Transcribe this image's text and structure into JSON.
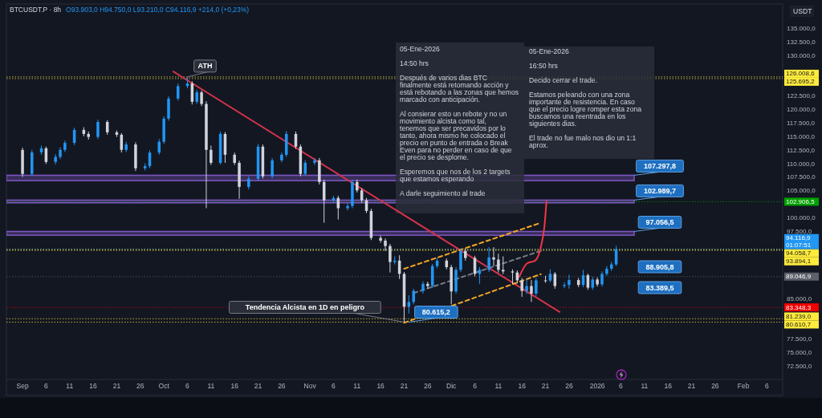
{
  "chart_data": {
    "type": "candlestick",
    "title": "BTCUSDT.P · 8h",
    "subtitle": "O93.903,0 H94.750,0 L93.210,0 C94.116,9 +214,0 (+0,23%)",
    "xlim": [
      "2025-08-28T14:00",
      "2026-02-09T08:00"
    ],
    "xticks": [
      {
        "value": "2025-09-01",
        "label": "Sep"
      },
      {
        "value": "2025-09-06",
        "label": "6"
      },
      {
        "value": "2025-09-11",
        "label": "11"
      },
      {
        "value": "2025-09-16",
        "label": "16"
      },
      {
        "value": "2025-09-21",
        "label": "21"
      },
      {
        "value": "2025-09-26",
        "label": "26"
      },
      {
        "value": "2025-10-01",
        "label": "Oct"
      },
      {
        "value": "2025-10-06",
        "label": "6"
      },
      {
        "value": "2025-10-11",
        "label": "11"
      },
      {
        "value": "2025-10-16",
        "label": "16"
      },
      {
        "value": "2025-10-21",
        "label": "21"
      },
      {
        "value": "2025-10-26",
        "label": "26"
      },
      {
        "value": "2025-11-01",
        "label": "Nov"
      },
      {
        "value": "2025-11-06",
        "label": "6"
      },
      {
        "value": "2025-11-11",
        "label": "11"
      },
      {
        "value": "2025-11-16",
        "label": "16"
      },
      {
        "value": "2025-11-21",
        "label": "21"
      },
      {
        "value": "2025-11-26",
        "label": "26"
      },
      {
        "value": "2025-12-01",
        "label": "Dic"
      },
      {
        "value": "2025-12-06",
        "label": "6"
      },
      {
        "value": "2025-12-11",
        "label": "11"
      },
      {
        "value": "2025-12-16",
        "label": "16"
      },
      {
        "value": "2025-12-21",
        "label": "21"
      },
      {
        "value": "2025-12-26",
        "label": "26"
      },
      {
        "value": "2026-01-01",
        "label": "2026"
      },
      {
        "value": "2026-01-06",
        "label": "6"
      },
      {
        "value": "2026-01-11",
        "label": "11"
      },
      {
        "value": "2026-01-16",
        "label": "16"
      },
      {
        "value": "2026-01-21",
        "label": "21"
      },
      {
        "value": "2026-01-26",
        "label": "26"
      },
      {
        "value": "2026-02-01",
        "label": "Feb"
      },
      {
        "value": "2026-02-06",
        "label": "6"
      }
    ],
    "ylim": [
      70000,
      139500
    ],
    "yticks": [
      {
        "value": 135000,
        "label": "135.000,0"
      },
      {
        "value": 132500,
        "label": "132.500,0"
      },
      {
        "value": 130000,
        "label": "130.000,0"
      },
      {
        "value": 122500,
        "label": "122.500,0"
      },
      {
        "value": 120000,
        "label": "120.000,0"
      },
      {
        "value": 117500,
        "label": "117.500,0"
      },
      {
        "value": 115000,
        "label": "115.000,0"
      },
      {
        "value": 112500,
        "label": "112.500,0"
      },
      {
        "value": 110000,
        "label": "110.000,0"
      },
      {
        "value": 107500,
        "label": "107.500,0"
      },
      {
        "value": 105000,
        "label": "105.000,0"
      },
      {
        "value": 100000,
        "label": "100.000,0"
      },
      {
        "value": 97500,
        "label": "97.500,0"
      },
      {
        "value": 85000,
        "label": "85.000,0"
      },
      {
        "value": 77500,
        "label": "77.500,0"
      },
      {
        "value": 75000,
        "label": "75.000,0"
      },
      {
        "value": 72500,
        "label": "72.500,0"
      }
    ],
    "series": [
      {
        "color": "#2196f3",
        "x": [
          "2025-09-03",
          "2025-09-05",
          "2025-09-08",
          "2025-09-09",
          "2025-09-10",
          "2025-09-12",
          "2025-09-17",
          "2025-09-23",
          "2025-09-27",
          "2025-09-28",
          "2025-09-30",
          "2025-10-01",
          "2025-10-02",
          "2025-10-04",
          "2025-10-06",
          "2025-10-08",
          "2025-10-13",
          "2025-10-19",
          "2025-10-21",
          "2025-10-24",
          "2025-10-26",
          "2025-10-27",
          "2025-10-31",
          "2025-11-02",
          "2025-11-06",
          "2025-11-09",
          "2025-11-10",
          "2025-11-19",
          "2025-11-22",
          "2025-11-23",
          "2025-11-25",
          "2025-11-27",
          "2025-11-28",
          "2025-12-02",
          "2025-12-03",
          "2025-12-07",
          "2025-12-09",
          "2025-12-17",
          "2025-12-19",
          "2025-12-22",
          "2025-12-25",
          "2025-12-26",
          "2025-12-29",
          "2025-12-31",
          "2026-01-02",
          "2026-01-03",
          "2026-01-04",
          "2026-01-05"
        ],
        "ohlc": [
          [
            108050,
            112500,
            107700,
            112040
          ],
          [
            112040,
            113300,
            111600,
            112800
          ],
          [
            110270,
            111700,
            109800,
            111200
          ],
          [
            111200,
            113000,
            110800,
            112500
          ],
          [
            112500,
            114200,
            112100,
            113800
          ],
          [
            113800,
            116600,
            113400,
            116200
          ],
          [
            114900,
            118100,
            114500,
            117670
          ],
          [
            112500,
            114000,
            112100,
            113500
          ],
          [
            109100,
            110000,
            108700,
            109500
          ],
          [
            109500,
            112400,
            109100,
            112000
          ],
          [
            112000,
            114500,
            111600,
            114000
          ],
          [
            114000,
            118700,
            113600,
            118300
          ],
          [
            118300,
            122400,
            117900,
            122000
          ],
          [
            122000,
            124800,
            121600,
            124300
          ],
          [
            124300,
            126008.6,
            123900,
            124800
          ],
          [
            121400,
            123600,
            121000,
            123150
          ],
          [
            110100,
            115900,
            109800,
            115450
          ],
          [
            105650,
            107600,
            105200,
            107150
          ],
          [
            107150,
            113600,
            106800,
            113100
          ],
          [
            107600,
            111000,
            107200,
            110560
          ],
          [
            110560,
            112000,
            110200,
            111600
          ],
          [
            111600,
            116000,
            111200,
            115450
          ],
          [
            108050,
            110600,
            107700,
            110100
          ],
          [
            110100,
            111000,
            109700,
            110560
          ],
          [
            103160,
            104000,
            102700,
            103600
          ],
          [
            101700,
            102600,
            101300,
            102120
          ],
          [
            102120,
            107000,
            101700,
            106560
          ],
          [
            91750,
            92800,
            91300,
            92000
          ],
          [
            83460,
            85600,
            82200,
            84350
          ],
          [
            84350,
            86800,
            83900,
            86400
          ],
          [
            86400,
            88200,
            85900,
            87700
          ],
          [
            87300,
            91400,
            86900,
            91000
          ],
          [
            91000,
            92500,
            90600,
            92000
          ],
          [
            86300,
            90800,
            85900,
            90300
          ],
          [
            90300,
            94300,
            89900,
            93800
          ],
          [
            89550,
            90800,
            87700,
            90300
          ],
          [
            90300,
            94500,
            89900,
            92600
          ],
          [
            86400,
            88600,
            85800,
            87300
          ],
          [
            85900,
            88800,
            85500,
            88350
          ],
          [
            88300,
            90400,
            88000,
            89550
          ],
          [
            87300,
            88000,
            86900,
            87500
          ],
          [
            87500,
            89400,
            86800,
            88400
          ],
          [
            87500,
            90300,
            87100,
            89300
          ],
          [
            87000,
            89000,
            86600,
            88500
          ],
          [
            87600,
            90000,
            87200,
            89550
          ],
          [
            89550,
            91000,
            89200,
            90500
          ],
          [
            90500,
            91800,
            90100,
            91300
          ],
          [
            91300,
            94750,
            91000,
            94116.9
          ]
        ]
      },
      {
        "color": "#d1d4dc",
        "x": [
          "2025-09-01",
          "2025-09-06",
          "2025-09-14",
          "2025-09-15",
          "2025-09-19",
          "2025-09-21",
          "2025-09-22",
          "2025-09-25",
          "2025-10-07",
          "2025-10-09",
          "2025-10-10",
          "2025-10-11",
          "2025-10-14",
          "2025-10-16",
          "2025-10-17",
          "2025-10-22",
          "2025-10-29",
          "2025-10-30",
          "2025-11-03",
          "2025-11-04",
          "2025-11-07",
          "2025-11-11",
          "2025-11-12",
          "2025-11-13",
          "2025-11-14",
          "2025-11-16",
          "2025-11-17",
          "2025-11-18",
          "2025-11-20",
          "2025-11-21",
          "2025-11-26",
          "2025-11-30",
          "2025-12-01",
          "2025-12-04",
          "2025-12-06",
          "2025-12-10",
          "2025-12-11",
          "2025-12-12",
          "2025-12-14",
          "2025-12-15",
          "2025-12-16",
          "2025-12-18",
          "2025-12-21",
          "2025-12-23",
          "2025-12-28",
          "2025-12-30",
          "2026-01-01"
        ],
        "ohlc": [
          [
            112490,
            112900,
            107500,
            108050
          ],
          [
            112800,
            113100,
            109900,
            110270
          ],
          [
            116200,
            116700,
            115000,
            115450
          ],
          [
            115450,
            115900,
            114400,
            114900
          ],
          [
            117670,
            118000,
            115300,
            115750
          ],
          [
            115750,
            116100,
            114900,
            115300
          ],
          [
            115300,
            115600,
            112000,
            112500
          ],
          [
            113500,
            113900,
            108600,
            109100
          ],
          [
            124800,
            125200,
            120900,
            121400
          ],
          [
            123150,
            123500,
            120600,
            121000
          ],
          [
            121000,
            121500,
            101700,
            112500
          ],
          [
            112500,
            113300,
            109700,
            110100
          ],
          [
            115450,
            115800,
            110100,
            111600
          ],
          [
            111600,
            112000,
            109700,
            110100
          ],
          [
            110100,
            110500,
            103450,
            105650
          ],
          [
            113100,
            113500,
            107200,
            107600
          ],
          [
            115450,
            115900,
            112700,
            113100
          ],
          [
            113100,
            113500,
            107600,
            108050
          ],
          [
            110560,
            111000,
            106100,
            106560
          ],
          [
            106560,
            107000,
            99010,
            103160
          ],
          [
            103600,
            104000,
            99600,
            101700
          ],
          [
            106560,
            107000,
            104600,
            105000
          ],
          [
            105000,
            105400,
            102700,
            103160
          ],
          [
            103160,
            103600,
            100800,
            101200
          ],
          [
            101200,
            101600,
            95800,
            96200
          ],
          [
            96200,
            96600,
            95300,
            95700
          ],
          [
            95700,
            96100,
            93800,
            94700
          ],
          [
            94700,
            95100,
            89800,
            91750
          ],
          [
            92000,
            93000,
            88600,
            89550
          ],
          [
            89550,
            89900,
            80615.2,
            83460
          ],
          [
            87700,
            88100,
            86800,
            87300
          ],
          [
            92000,
            92400,
            90400,
            90800
          ],
          [
            90800,
            91200,
            83900,
            86300
          ],
          [
            93800,
            94200,
            92000,
            92500
          ],
          [
            92500,
            92900,
            89100,
            89550
          ],
          [
            92600,
            94500,
            91000,
            92200
          ],
          [
            92200,
            93300,
            89800,
            90300
          ],
          [
            90300,
            92800,
            89500,
            90000
          ],
          [
            90000,
            90400,
            87600,
            89800
          ],
          [
            89800,
            90200,
            87800,
            88350
          ],
          [
            88350,
            88800,
            85300,
            86400
          ],
          [
            87300,
            88400,
            84350,
            85900
          ],
          [
            88350,
            89200,
            87900,
            88300
          ],
          [
            89550,
            89900,
            86800,
            87300
          ],
          [
            88400,
            88800,
            87100,
            87500
          ],
          [
            89300,
            89600,
            86600,
            87000
          ],
          [
            88500,
            88900,
            87200,
            87600
          ]
        ]
      },
      {
        "type": "line",
        "color": "#d0334a",
        "line_style": "solid",
        "x": [
          "2025-10-03",
          "2025-12-24"
        ],
        "values": [
          127000,
          82500
        ]
      },
      {
        "type": "line",
        "color": "#f5a623",
        "line_style": "dashed",
        "x": [
          "2025-11-21",
          "2025-12-20"
        ],
        "values": [
          90500,
          99000
        ]
      },
      {
        "type": "line",
        "color": "#787b86",
        "line_style": "dashed",
        "x": [
          "2025-11-23",
          "2025-12-20"
        ],
        "values": [
          86000,
          93800
        ]
      },
      {
        "type": "line",
        "color": "#f5a623",
        "line_style": "dashed",
        "x": [
          "2025-11-21",
          "2025-12-20"
        ],
        "values": [
          80500,
          89500
        ]
      },
      {
        "type": "line",
        "color": "#f23645",
        "line_style": "solid",
        "x": [
          "2025-12-15T10:00",
          "2025-12-17T02:00",
          "2025-12-18T19:00",
          "2025-12-20T00:00",
          "2025-12-20T19:00",
          "2025-12-21T05:00"
        ],
        "values": [
          89000,
          91500,
          92000,
          94500,
          98500,
          103000
        ]
      }
    ],
    "bands": [
      {
        "axis": "y",
        "from": 106800,
        "to": 107800,
        "label": "107.297,8",
        "color": "#7e57c2"
      },
      {
        "axis": "y",
        "from": 102700,
        "to": 103200,
        "label": "102.989,7",
        "color": "#7e57c2"
      },
      {
        "axis": "y",
        "from": 96700,
        "to": 97400,
        "label": "97.056,5",
        "color": "#7e57c2"
      }
    ],
    "ref_lines": [
      {
        "axis": "y",
        "value": 126008.6,
        "label": "126.008,6",
        "color": "#ffeb3b",
        "line_style": "dotted"
      },
      {
        "axis": "y",
        "value": 125695.2,
        "label": "125.695,2",
        "color": "#ffeb3b",
        "line_style": "dotted"
      },
      {
        "axis": "y",
        "value": 102906.5,
        "label": "102.906,5",
        "color": "#00a000",
        "line_style": "dotted"
      },
      {
        "axis": "y",
        "value": 94116.9,
        "label": "94.116,9\n01:07:51",
        "color": "#2196f3",
        "line_style": "dotted"
      },
      {
        "axis": "y",
        "value": 94058.7,
        "label": "94.058,7",
        "color": "#ffeb3b",
        "line_style": "dotted"
      },
      {
        "axis": "y",
        "value": 93894.1,
        "label": "93.894,1",
        "color": "#ffeb3b",
        "line_style": "dotted"
      },
      {
        "axis": "y",
        "value": 89046.9,
        "label": "89.046,9",
        "color": "#5d606b",
        "line_style": "dotted"
      },
      {
        "axis": "y",
        "value": 83348.3,
        "label": "83.348,3",
        "color": "#f00000",
        "line_style": "dotted"
      },
      {
        "axis": "y",
        "value": 81239.0,
        "label": "81.239,0",
        "color": "#ffeb3b",
        "line_style": "dotted"
      },
      {
        "axis": "y",
        "value": 80610.7,
        "label": "80.610,7",
        "color": "#ffeb3b",
        "line_style": "dotted"
      }
    ],
    "annotations": [
      "05-Ene-2026\n\n14:50 hrs\n\n\nDespués de varios dias BTC\nfinalmente está retomando acción y\nestá rebotando a las zonas que hemos\nmarcado con anticipación.\n\nAl consierar esto un rebote y no un\nmovimiento alcista como tal,\ntenemos que ser precavidos por lo\ntanto, ahora mismo he colocado el\nprecio en punto de entrada o Break\nEven para no perder en caso de que\nel precio se desplome.\n\nEsperemos que nos de los 2 targets\nque estamos esperando\n\n\nA darle seguimiento al trade",
      "05-Ene-2026\n\n16:50 hrs\n\n\nDecido cerrar el trade.\n\nEstamos peleando con una zona\nimportante de resistencia. En caso\nque el precio logre romper esta zona\nbuscamos una reentrada en los\nsiguientes dias.\n\nEl trade no fue malo nos dio un 1:1\naprox.",
      "USDT",
      "88.905,8",
      "83.389,5",
      {
        "text": "ATH",
        "x": "2025-10-06",
        "y": 126008.6
      },
      {
        "text": "80.615,2",
        "x": "2025-11-22",
        "y": 80615.2
      },
      {
        "text": "Tendencia Alcista en 1D en peligro",
        "x": "2025-11-21",
        "y": 80615.2
      }
    ]
  }
}
